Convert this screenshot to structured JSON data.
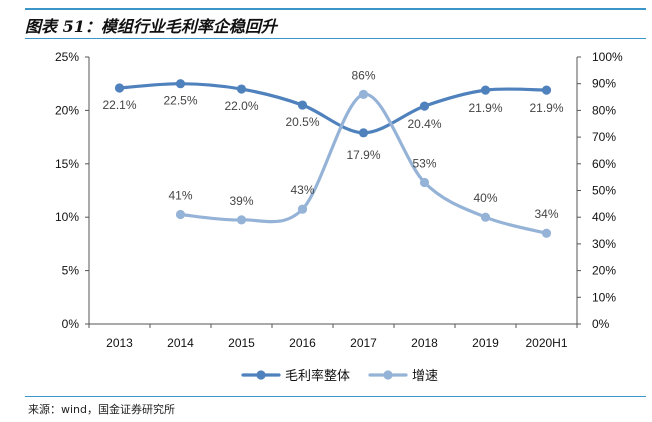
{
  "title": "图表 51：模组行业毛利率企稳回升",
  "source": "来源：wind，国金证券研究所",
  "colors": {
    "primary": "#4f81bd",
    "secondary": "#95b3d7",
    "rule": "#3c95c8"
  },
  "chart_data": {
    "type": "line",
    "categories": [
      "2013",
      "2014",
      "2015",
      "2016",
      "2017",
      "2018",
      "2019",
      "2020H1"
    ],
    "y_left": {
      "min": 0,
      "max": 25,
      "step": 5,
      "ticks": [
        "0%",
        "5%",
        "10%",
        "15%",
        "20%",
        "25%"
      ]
    },
    "y_right": {
      "min": 0,
      "max": 100,
      "step": 10,
      "ticks": [
        "0%",
        "10%",
        "20%",
        "30%",
        "40%",
        "50%",
        "60%",
        "70%",
        "80%",
        "90%",
        "100%"
      ]
    },
    "series": [
      {
        "name": "毛利率整体",
        "axis": "left",
        "color": "#4f81bd",
        "values": [
          22.1,
          22.5,
          22.0,
          20.5,
          17.9,
          20.4,
          21.9,
          21.9
        ],
        "labels": [
          "22.1%",
          "22.5%",
          "22.0%",
          "20.5%",
          "17.9%",
          "20.4%",
          "21.9%",
          "21.9%"
        ]
      },
      {
        "name": "增速",
        "axis": "right",
        "color": "#95b3d7",
        "values": [
          null,
          41,
          39,
          43,
          86,
          53,
          40,
          34
        ],
        "labels": [
          "",
          "41%",
          "39%",
          "43%",
          "86%",
          "53%",
          "40%",
          "34%"
        ]
      }
    ],
    "legend": "bottom-center",
    "grid": false
  }
}
